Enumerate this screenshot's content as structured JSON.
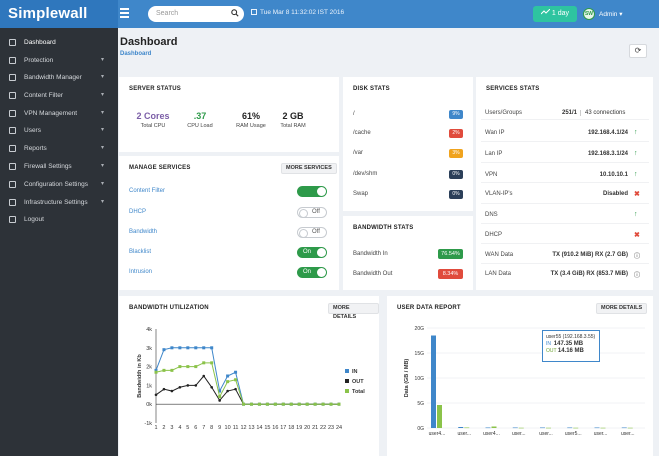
{
  "app": {
    "title": "Simplewall"
  },
  "topbar": {
    "search_placeholder": "Search",
    "datetime": "Tue Mar 8 11:32:02 IST 2016",
    "range_label": "1 day",
    "user_label": "Admin"
  },
  "sidebar": {
    "items": [
      {
        "label": "Dashboard",
        "caret": false
      },
      {
        "label": "Protection",
        "caret": true
      },
      {
        "label": "Bandwidth Manager",
        "caret": true
      },
      {
        "label": "Content Filter",
        "caret": true
      },
      {
        "label": "VPN Management",
        "caret": true
      },
      {
        "label": "Users",
        "caret": true
      },
      {
        "label": "Reports",
        "caret": true
      },
      {
        "label": "Firewall Settings",
        "caret": true
      },
      {
        "label": "Configuration Settings",
        "caret": true
      },
      {
        "label": "Infrastructure Settings",
        "caret": true
      },
      {
        "label": "Logout",
        "caret": false
      }
    ]
  },
  "page": {
    "title": "Dashboard",
    "breadcrumb": "Dashboard"
  },
  "server_status": {
    "title": "SERVER STATUS",
    "stats": [
      {
        "value": "2 Cores",
        "label": "Total CPU",
        "color": "#7b5ea7"
      },
      {
        "value": ".37",
        "label": "CPU Load",
        "color": "#2e9a4a"
      },
      {
        "value": "61%",
        "label": "RAM Usage",
        "color": "#222222"
      },
      {
        "value": "2 GB",
        "label": "Total RAM",
        "color": "#222222"
      }
    ]
  },
  "manage_services": {
    "title": "MANAGE SERVICES",
    "more_label": "MORE SERVICES",
    "items": [
      {
        "name": "Content Filter",
        "state": "switch",
        "state_label": ""
      },
      {
        "name": "DHCP",
        "state": "off",
        "state_label": "Off"
      },
      {
        "name": "Bandwidth",
        "state": "off",
        "state_label": "Off"
      },
      {
        "name": "Blacklist",
        "state": "on",
        "state_label": "On"
      },
      {
        "name": "Intrusion",
        "state": "on",
        "state_label": "On"
      }
    ]
  },
  "disk_stats": {
    "title": "DISK STATS",
    "items": [
      {
        "mount": "/",
        "value": "9%",
        "color": "#3f87ca"
      },
      {
        "mount": "/cache",
        "value": "2%",
        "color": "#e04b3c"
      },
      {
        "mount": "/var",
        "value": "3%",
        "color": "#f0a31e"
      },
      {
        "mount": "/dev/shm",
        "value": "0%",
        "color": "#2b3f59"
      },
      {
        "mount": "Swap",
        "value": "0%",
        "color": "#2b3f59"
      }
    ]
  },
  "bandwidth_stats": {
    "title": "BANDWIDTH STATS",
    "items": [
      {
        "label": "Bandwidth In",
        "value": "76.54%",
        "color": "#2e9a4a"
      },
      {
        "label": "Bandwidth Out",
        "value": "8.34%",
        "color": "#e04b3c"
      }
    ]
  },
  "services_stats": {
    "title": "SERVICES STATS",
    "users_groups": {
      "label": "Users/Groups",
      "value": "251/1",
      "connections": "43 connections"
    },
    "items": [
      {
        "label": "Wan IP",
        "value": "192.168.4.1/24",
        "status": "up"
      },
      {
        "label": "Lan IP",
        "value": "192.168.3.1/24",
        "status": "up"
      },
      {
        "label": "VPN",
        "value": "10.10.10.1",
        "status": "up"
      },
      {
        "label": "VLAN-IP's",
        "value": "Disabled",
        "status": "x"
      },
      {
        "label": "DNS",
        "value": "",
        "status": "up"
      },
      {
        "label": "DHCP",
        "value": "",
        "status": "x"
      },
      {
        "label": "WAN Data",
        "value": "TX (910.2 MiB) RX (2.7 GB)",
        "status": "info"
      },
      {
        "label": "LAN Data",
        "value": "TX (3.4 GiB) RX (853.7 MiB)",
        "status": "info"
      }
    ]
  },
  "bandwidth_utilization": {
    "title": "BANDWIDTH UTILIZATION",
    "more_label": "MORE DETAILS"
  },
  "user_data_report": {
    "title": "USER DATA REPORT",
    "more_label": "MORE DETAILS",
    "tooltip": {
      "user": "user55 (192.168.3.55)",
      "in_label": "IN",
      "in_value": "147.35 MB",
      "out_label": "OUT",
      "out_value": "14.16 MB"
    }
  },
  "chart_data": [
    {
      "type": "line",
      "title": "",
      "xlabel": "",
      "ylabel": "Bandwidth in Kb",
      "x": [
        1,
        2,
        3,
        4,
        5,
        6,
        7,
        8,
        9,
        10,
        11,
        12,
        13,
        14,
        15,
        16,
        17,
        18,
        19,
        20,
        21,
        22,
        23,
        24
      ],
      "ylim": [
        -1000,
        4000
      ],
      "yticks": [
        "-1k",
        "0k",
        "1k",
        "2k",
        "3k",
        "4k"
      ],
      "legend": "right",
      "series": [
        {
          "name": "IN",
          "color": "#3f87ca",
          "values": [
            1800,
            2900,
            3000,
            3000,
            3000,
            3000,
            3000,
            3000,
            700,
            1500,
            1700,
            0,
            0,
            0,
            0,
            0,
            0,
            0,
            0,
            0,
            0,
            0,
            0,
            0
          ]
        },
        {
          "name": "OUT",
          "color": "#222222",
          "values": [
            500,
            800,
            700,
            900,
            1000,
            1000,
            1500,
            900,
            200,
            700,
            800,
            0,
            0,
            0,
            0,
            0,
            0,
            0,
            0,
            0,
            0,
            0,
            0,
            0
          ]
        },
        {
          "name": "Total",
          "color": "#8bc34a",
          "values": [
            1700,
            1800,
            1800,
            2000,
            2000,
            2000,
            2200,
            2200,
            400,
            1200,
            1300,
            0,
            0,
            0,
            0,
            0,
            0,
            0,
            0,
            0,
            0,
            0,
            0,
            0
          ]
        }
      ]
    },
    {
      "type": "bar",
      "title": "",
      "ylabel": "Data (GB / MB)",
      "categories": [
        "user4...",
        "user...",
        "user4...",
        "user...",
        "user...",
        "user5...",
        "user...",
        "user..."
      ],
      "ylim": [
        0,
        20
      ],
      "yticks": [
        "0G",
        "5G",
        "10G",
        "15G",
        "20G"
      ],
      "series": [
        {
          "name": "IN",
          "color": "#3f87ca",
          "values": [
            18.5,
            0.2,
            0.1,
            0.1,
            0.1,
            0.1,
            0.1,
            0.1
          ]
        },
        {
          "name": "OUT",
          "color": "#8bc34a",
          "values": [
            4.6,
            0.1,
            0.3,
            0.05,
            0.05,
            0.05,
            0.05,
            0.05
          ]
        }
      ]
    }
  ]
}
